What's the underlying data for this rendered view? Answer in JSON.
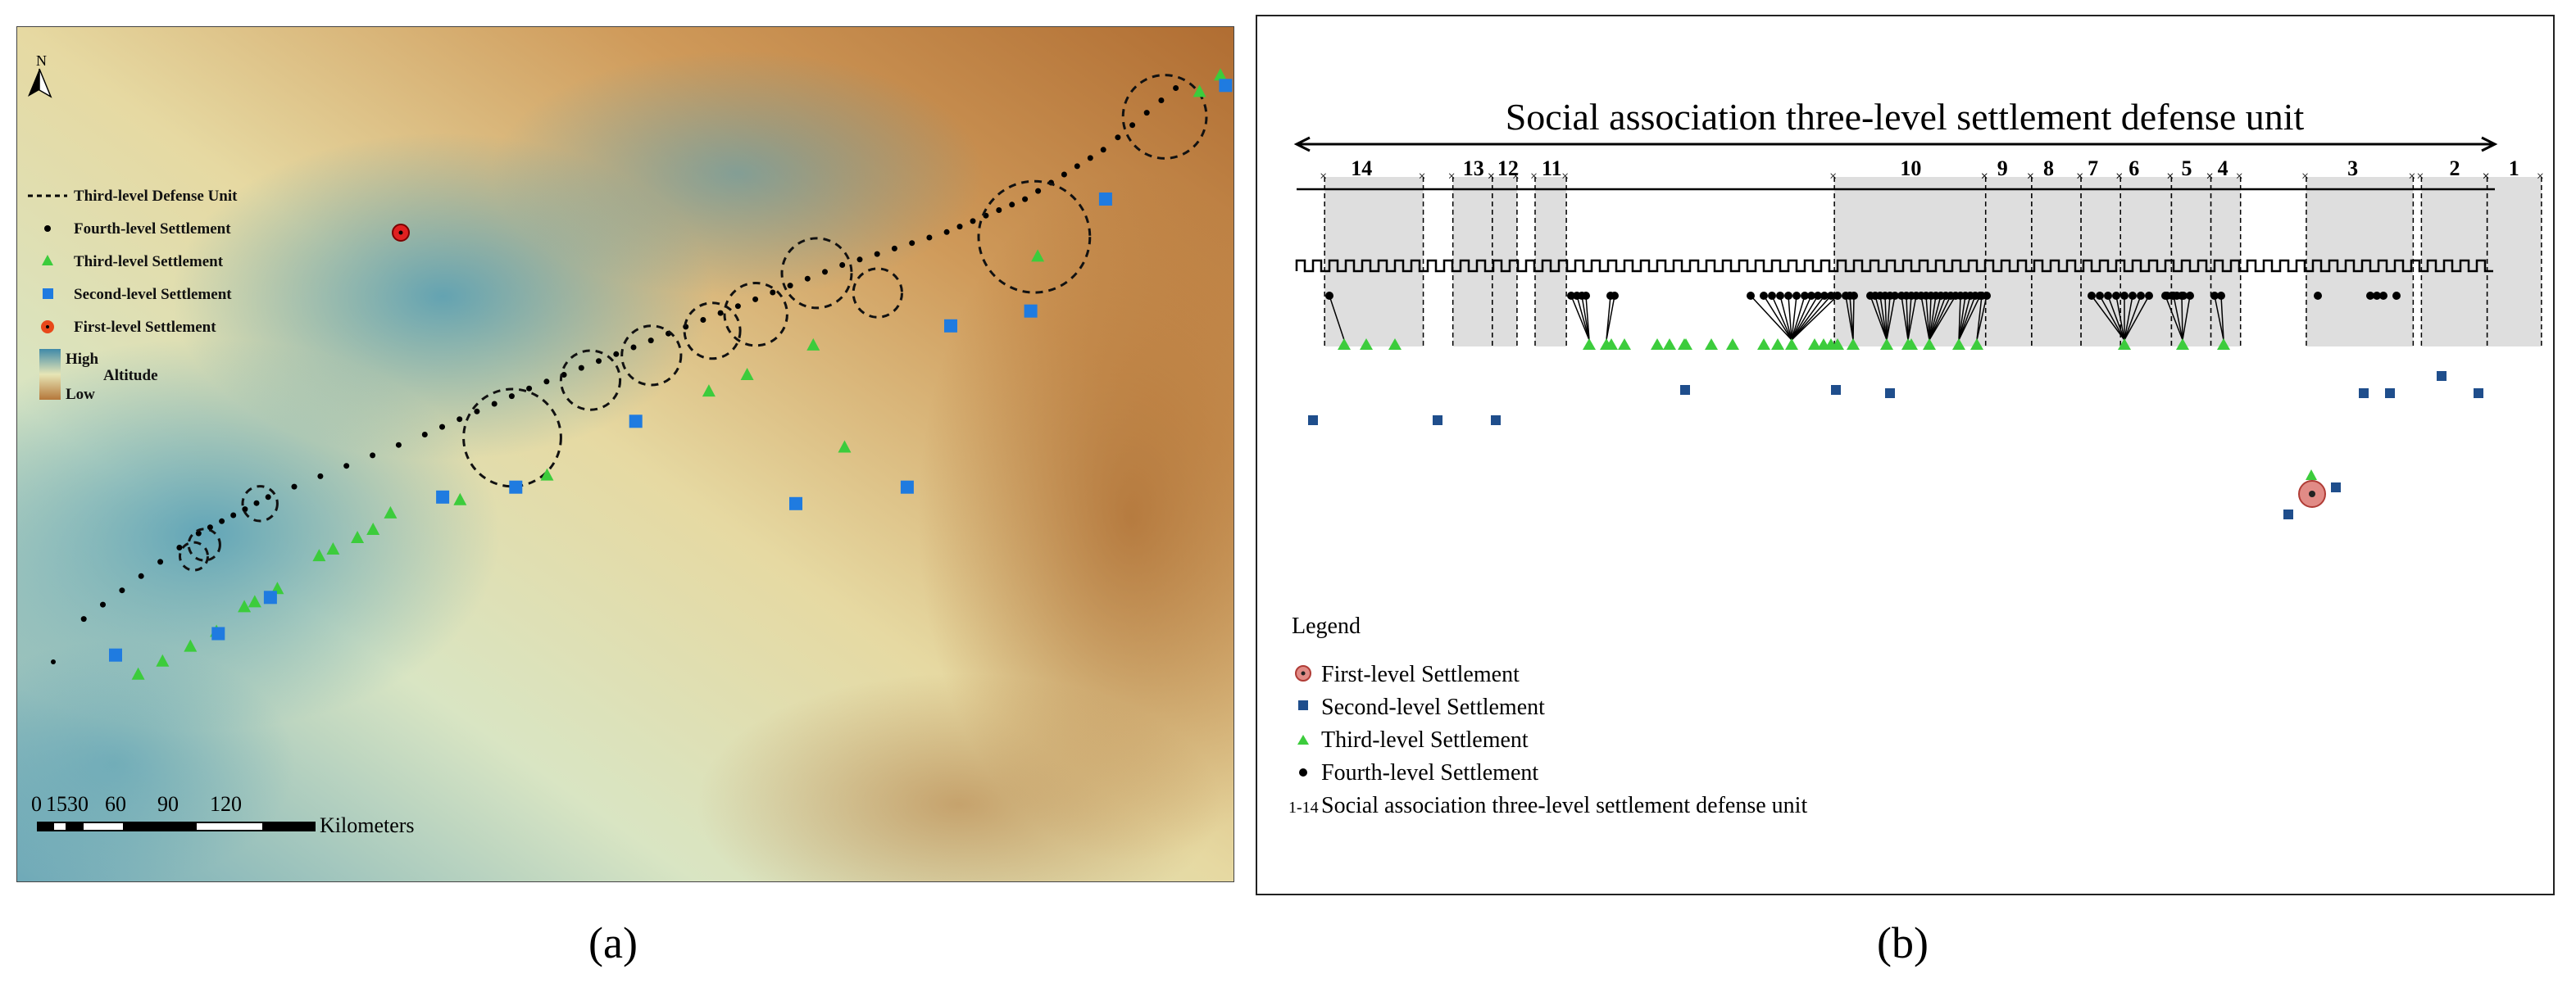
{
  "panel_a": {
    "caption": "(a)",
    "north_label": "N",
    "legend": {
      "defense_unit": "Third-level Defense Unit",
      "fourth": "Fourth-level Settlement",
      "third": "Third-level Settlement",
      "second": "Second-level Settlement",
      "first": "First-level Settlement",
      "high": "High",
      "low": "Low",
      "altitude": "Altitude"
    },
    "scale_bar": {
      "ticks": [
        "0",
        "15",
        "30",
        "60",
        "90",
        "120"
      ],
      "unit": "Kilometers"
    }
  },
  "panel_b": {
    "caption": "(b)",
    "title": "Social association three-level settlement defense unit",
    "unit_numbers": [
      "14",
      "13",
      "12",
      "11",
      "10",
      "9",
      "8",
      "7",
      "6",
      "5",
      "4",
      "3",
      "2",
      "1"
    ],
    "legend": {
      "title": "Legend",
      "first": "First-level Settlement",
      "second": "Second-level Settlement",
      "third": "Third-level Settlement",
      "fourth": "Fourth-level Settlement",
      "range_label": "1-14",
      "unit": "Social association three-level settlement defense unit"
    }
  },
  "colors": {
    "first": "#e02020",
    "second_a": "#1f7be0",
    "second_b": "#1f4e8c",
    "third": "#3ccc3c",
    "fourth": "#000000",
    "unit_shade": "#dedede",
    "terrain_high": "#3f8aa8",
    "terrain_mid": "#e7e6b6",
    "terrain_low": "#b5773a"
  }
}
